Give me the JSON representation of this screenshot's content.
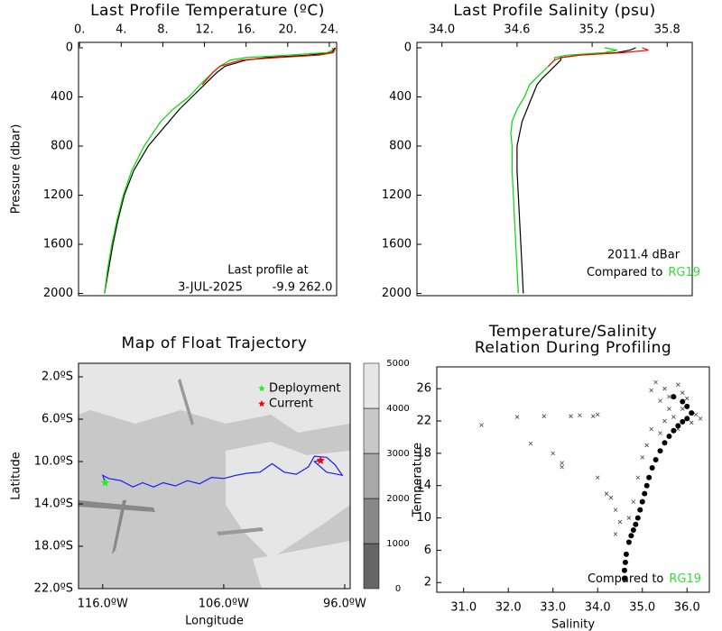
{
  "chart_data": [
    {
      "type": "profile",
      "title": "Last Profile Temperature (ºC)",
      "ylabel": "Pressure (dbar)",
      "xlim": [
        -0.1,
        24.7
      ],
      "xticks": [
        {
          "value": 0,
          "label": "0."
        },
        {
          "value": 4,
          "label": "4."
        },
        {
          "value": 8,
          "label": "8."
        },
        {
          "value": 12,
          "label": "12."
        },
        {
          "value": 16,
          "label": "16."
        },
        {
          "value": 20,
          "label": "20."
        },
        {
          "value": 24,
          "label": "24."
        }
      ],
      "ylim": [
        2018,
        -44
      ],
      "yticks": [
        0,
        400,
        800,
        1200,
        1600,
        2000
      ],
      "pressure": [
        0,
        20,
        40,
        60,
        80,
        100,
        150,
        200,
        250,
        300,
        400,
        500,
        600,
        700,
        800,
        1000,
        1200,
        1400,
        1600,
        1800,
        2000
      ],
      "series": [
        {
          "color": "#000000",
          "values": [
            24.5,
            24.4,
            24.2,
            22,
            18,
            16,
            14,
            13.2,
            12.6,
            12.0,
            10.8,
            9.6,
            8.6,
            7.6,
            6.6,
            5.2,
            4.3,
            3.7,
            3.2,
            2.8,
            2.4
          ]
        },
        {
          "color": "#00dd00",
          "values": [
            24.3,
            24.3,
            23.8,
            20,
            16,
            14.5,
            13.5,
            12.8,
            12.2,
            11.6,
            10.5,
            9.0,
            7.8,
            7.0,
            6.2,
            5.0,
            4.2,
            3.6,
            3.1,
            2.7,
            2.4
          ]
        },
        {
          "color": "#ff0000",
          "values": [
            24.6,
            24.5,
            24.4,
            23,
            19,
            15.5,
            13.5,
            12.8,
            12.3,
            11.8,
            null,
            null,
            null,
            null,
            null,
            null,
            null,
            null,
            null,
            null,
            null
          ]
        }
      ],
      "annotations": [
        "Last profile at",
        "3-JUL-2025",
        "-9.9 262.0"
      ]
    },
    {
      "type": "profile",
      "title": "Last Profile Salinity (psu)",
      "xlim": [
        33.8,
        36.0
      ],
      "xticks": [
        {
          "value": 34,
          "label": "34.0"
        },
        34.6,
        35.2,
        35.8
      ],
      "ylim": [
        2018,
        -44
      ],
      "yticks": [
        0,
        400,
        800,
        1200,
        1600,
        2000
      ],
      "pressure": [
        0,
        20,
        40,
        60,
        80,
        100,
        150,
        200,
        250,
        300,
        400,
        500,
        600,
        700,
        800,
        1000,
        1200,
        1400,
        1600,
        1800,
        2000
      ],
      "series": [
        {
          "color": "#000000",
          "values": [
            35.55,
            35.5,
            35.4,
            35.1,
            34.95,
            34.95,
            34.9,
            34.85,
            34.8,
            34.76,
            34.72,
            34.68,
            34.64,
            34.62,
            34.6,
            34.6,
            34.61,
            34.62,
            34.63,
            34.64,
            34.65
          ]
        },
        {
          "color": "#00dd00",
          "values": [
            35.3,
            35.4,
            35.3,
            35.0,
            34.9,
            34.9,
            34.85,
            34.8,
            34.75,
            34.7,
            34.66,
            34.6,
            34.56,
            34.55,
            34.56,
            34.56,
            34.57,
            34.58,
            34.59,
            34.6,
            34.61
          ]
        },
        {
          "color": "#ff0000",
          "values": [
            35.6,
            35.65,
            35.45,
            35.1,
            34.95,
            34.9,
            34.85,
            null,
            null,
            null,
            null,
            null,
            null,
            null,
            null,
            null,
            null,
            null,
            null,
            null,
            null
          ]
        }
      ],
      "annotations": [
        "2011.4 dBar"
      ],
      "compared_to": {
        "text": "Compared to",
        "ref": "RG19",
        "ref_color": "#33dd33"
      }
    },
    {
      "type": "map",
      "title": "Map of Float Trajectory",
      "xlabel": "Longitude",
      "ylabel": "Latitude",
      "xlim": [
        -118.0,
        -95.55
      ],
      "xticks": [
        {
          "value": -116,
          "label": "116.0ºW"
        },
        {
          "value": -106,
          "label": "106.0ºW"
        },
        {
          "value": -96,
          "label": "96.0ºW"
        }
      ],
      "ylim": [
        -22.0,
        -0.72
      ],
      "yticks": [
        {
          "value": -2,
          "label": "2.0ºS"
        },
        {
          "value": -6,
          "label": "6.0ºS"
        },
        {
          "value": -10,
          "label": "10.0ºS"
        },
        {
          "value": -14,
          "label": "14.0ºS"
        },
        {
          "value": -18,
          "label": "18.0ºS"
        },
        {
          "value": -22,
          "label": "22.0ºS"
        }
      ],
      "trajectory": {
        "color": "#1a1aff",
        "lon": [
          -115.8,
          -116.0,
          -115.5,
          -114.5,
          -113.5,
          -112.7,
          -111.8,
          -111.0,
          -110.0,
          -109.0,
          -108.0,
          -107.0,
          -106.0,
          -105.0,
          -104.0,
          -103.0,
          -102.0,
          -101.0,
          -100.0,
          -99.0,
          -98.5,
          -97.5,
          -96.8,
          -96.2,
          -97.5,
          -98.5,
          -98.0
        ],
        "lat": [
          -12.0,
          -11.3,
          -11.6,
          -11.8,
          -12.4,
          -12.0,
          -12.4,
          -12.0,
          -12.3,
          -11.8,
          -12.1,
          -11.5,
          -11.6,
          -11.3,
          -11.1,
          -11.0,
          -10.2,
          -11.0,
          -11.2,
          -10.5,
          -9.5,
          -9.6,
          -10.3,
          -11.3,
          -11.0,
          -10.0,
          -9.9
        ]
      },
      "markers": [
        {
          "name": "Deployment",
          "color": "#22ee22",
          "lon": -115.8,
          "lat": -12.0
        },
        {
          "name": "Current",
          "color": "#ff0000",
          "lon": -98.0,
          "lat": -9.9
        }
      ],
      "legend": "upper right",
      "colorbar": {
        "ticks": [
          0,
          1000,
          2000,
          3000,
          4000,
          5000
        ],
        "colors": [
          "#666666",
          "#888888",
          "#a8a8a8",
          "#c8c8c8",
          "#e6e6e6"
        ]
      }
    },
    {
      "type": "scatter",
      "title": [
        "Temperature/Salinity",
        "Relation During Profiling"
      ],
      "xlabel": "Salinity",
      "ylabel": "Temperature",
      "xlim": [
        30.4,
        36.5
      ],
      "xticks": [
        {
          "value": 31,
          "label": "31.0"
        },
        {
          "value": 32,
          "label": "32.0"
        },
        {
          "value": 33,
          "label": "33.0"
        },
        {
          "value": 34,
          "label": "34.0"
        },
        {
          "value": 35,
          "label": "35.0"
        },
        {
          "value": 36,
          "label": "36.0"
        }
      ],
      "ylim": [
        0.8,
        28.7
      ],
      "yticks": [
        2,
        6,
        10,
        14,
        18,
        22,
        26
      ],
      "series": [
        {
          "color": "#444444",
          "marker": "x",
          "x": [
            31.4,
            32.2,
            32.8,
            33.4,
            33.6,
            33.9,
            34.0,
            32.5,
            33.0,
            33.2,
            33.2,
            34.0,
            34.2,
            34.3,
            34.4,
            34.5,
            34.4,
            35.5,
            35.8,
            35.3,
            35.9,
            36.2,
            35.6,
            35.4,
            35.9,
            36.1,
            35.7,
            35.5,
            35.2,
            35.4,
            35.1,
            35.0,
            34.9,
            34.8,
            34.7,
            35.6,
            36.0,
            35.2,
            35.8,
            36.3
          ],
          "values": [
            21.5,
            22.5,
            22.6,
            22.6,
            22.7,
            22.6,
            22.8,
            19.2,
            18.0,
            16.8,
            16.3,
            15.0,
            13.0,
            12.5,
            11.0,
            9.5,
            8.0,
            26.0,
            26.5,
            26.8,
            25.5,
            22.8,
            23.5,
            24.5,
            23.5,
            21.8,
            22.5,
            22.0,
            21.0,
            20.5,
            19.0,
            17.5,
            15.0,
            12.0,
            10.0,
            25.0,
            24.8,
            25.8,
            21.0,
            22.3
          ]
        },
        {
          "color": "#000000",
          "marker": "dot",
          "x": [
            34.6,
            34.6,
            34.62,
            34.64,
            34.7,
            34.75,
            34.8,
            34.85,
            34.9,
            34.95,
            35.0,
            35.05,
            35.1,
            35.15,
            35.22,
            35.3,
            35.4,
            35.5,
            35.6,
            35.7,
            35.8,
            35.9,
            36.0,
            36.1,
            36.0,
            35.9,
            35.7
          ],
          "values": [
            2.5,
            3.5,
            4.5,
            5.5,
            7.0,
            7.8,
            8.5,
            9.2,
            10.0,
            11.0,
            12.0,
            13.0,
            14.0,
            15.0,
            16.2,
            17.2,
            18.3,
            19.3,
            20.1,
            20.8,
            21.4,
            21.9,
            22.3,
            23.0,
            23.8,
            24.4,
            25.0
          ]
        }
      ],
      "compared_to": {
        "text": "Compared to",
        "ref": "RG19",
        "ref_color": "#33dd33"
      }
    }
  ]
}
